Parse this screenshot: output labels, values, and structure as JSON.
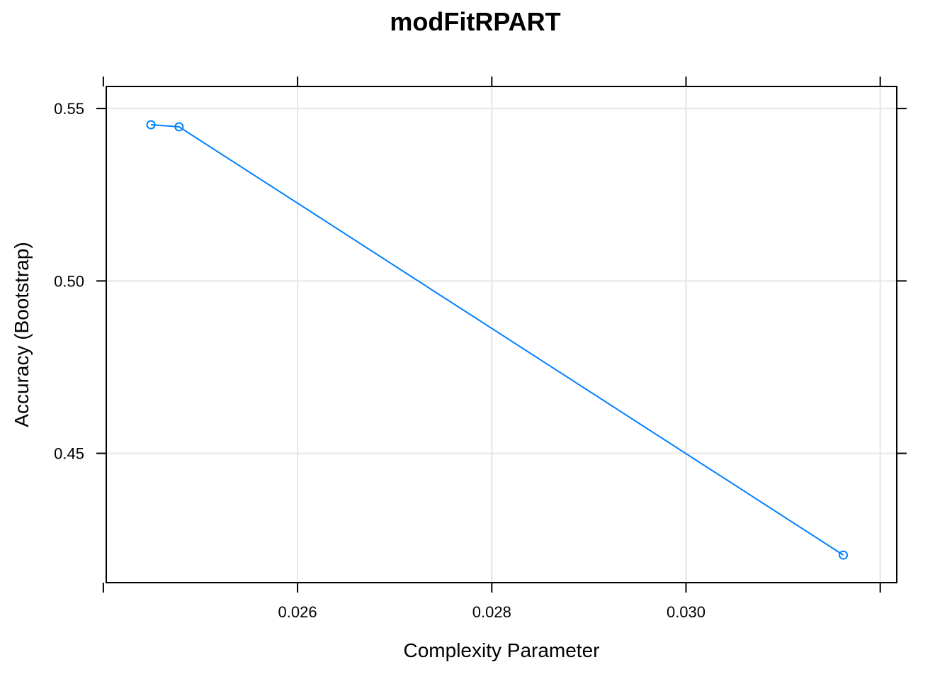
{
  "chart_data": {
    "type": "line",
    "title": "modFitRPART",
    "xlabel": "Complexity Parameter",
    "ylabel": "Accuracy (Bootstrap)",
    "xlim": [
      0.02403,
      0.03217
    ],
    "ylim": [
      0.4125,
      0.5564
    ],
    "x_ticks": [
      0.024,
      0.026,
      0.028,
      0.03,
      0.032
    ],
    "x_tick_labels": [
      "",
      "0.026",
      "0.028",
      "0.030",
      ""
    ],
    "y_ticks": [
      0.45,
      0.5,
      0.55
    ],
    "y_tick_labels": [
      "0.45",
      "0.50",
      "0.55"
    ],
    "grid": true,
    "legend": "none",
    "series": [
      {
        "color": "#0080ff",
        "x": [
          0.02449,
          0.02478,
          0.03162
        ],
        "y": [
          0.5453,
          0.5447,
          0.4205
        ]
      }
    ]
  }
}
